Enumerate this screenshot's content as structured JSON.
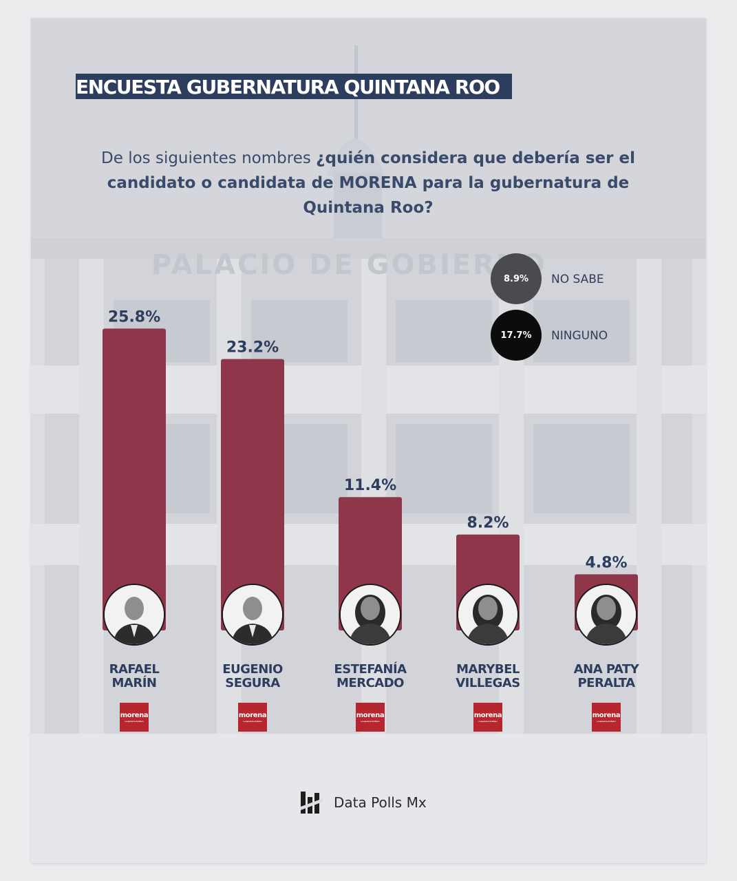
{
  "title": "ENCUESTA GUBERNATURA QUINTANA ROO",
  "question": {
    "part1": "De los siguientes nombres ",
    "part2": "¿quién considera que debería ser el candidato o candidata de MORENA para la gubernatura de Quintana Roo?"
  },
  "background_sign": "PALACIO DE GOBIERNO",
  "side_stats": [
    {
      "value": "8.9%",
      "label": "NO SABE",
      "color": "#4a4b4f"
    },
    {
      "value": "17.7%",
      "label": "NINGUNO",
      "color": "#0c0c0c"
    }
  ],
  "chart_data": {
    "type": "bar",
    "categories": [
      "RAFAEL MARÍN",
      "EUGENIO SEGURA",
      "ESTEFANÍA MERCADO",
      "MARYBEL VILLEGAS",
      "ANA PATY PERALTA"
    ],
    "values": [
      25.8,
      23.2,
      11.4,
      8.2,
      4.8
    ],
    "value_labels": [
      "25.8%",
      "23.2%",
      "11.4%",
      "8.2%",
      "4.8%"
    ],
    "name_lines": [
      [
        "RAFAEL",
        "MARÍN"
      ],
      [
        "EUGENIO",
        "SEGURA"
      ],
      [
        "ESTEFANÍA",
        "MERCADO"
      ],
      [
        "MARYBEL",
        "VILLEGAS"
      ],
      [
        "ANA PATY",
        "PERALTA"
      ]
    ],
    "bar_color": "#8f364b",
    "label_color": "#2d3d5e",
    "grid": false
  },
  "party_badge": {
    "label": "morena",
    "tagline": "La esperanza de México"
  },
  "brand": {
    "name": "Data Polls Mx",
    "icon": "data-polls-logo-icon"
  }
}
